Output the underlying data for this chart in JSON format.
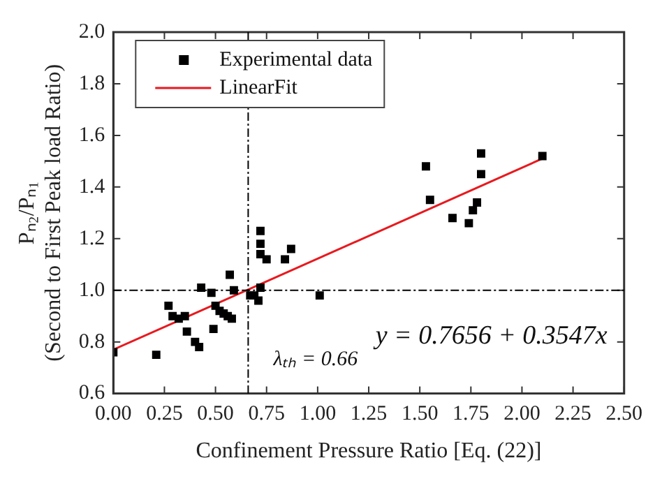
{
  "chart_data": {
    "type": "scatter",
    "xlabel": "Confinement Pressure Ratio [Eq. (22)]",
    "ylabel": "Pₙ₂/Pₙ₁\n(Second to First Peak load Ratio)",
    "series": [
      {
        "name": "Experimental data",
        "type": "scatter",
        "color": "#000000",
        "marker": "square",
        "x": [
          0,
          0.21,
          0.27,
          0.29,
          0.32,
          0.35,
          0.36,
          0.4,
          0.42,
          0.43,
          0.48,
          0.49,
          0.5,
          0.52,
          0.54,
          0.56,
          0.58,
          0.57,
          0.59,
          0.67,
          0.69,
          0.71,
          0.72,
          0.72,
          0.72,
          0.72,
          0.75,
          0.84,
          0.87,
          1.01,
          1.53,
          1.55,
          1.66,
          1.74,
          1.76,
          1.78,
          1.8,
          1.8,
          2.1
        ],
        "values": [
          0.76,
          0.75,
          0.94,
          0.9,
          0.89,
          0.9,
          0.84,
          0.8,
          0.78,
          1.01,
          0.99,
          0.85,
          0.94,
          0.92,
          0.91,
          0.9,
          0.89,
          1.06,
          1.0,
          0.98,
          0.98,
          0.96,
          1.01,
          1.23,
          1.18,
          1.14,
          1.12,
          1.12,
          1.16,
          0.98,
          1.48,
          1.35,
          1.28,
          1.26,
          1.31,
          1.34,
          1.45,
          1.53,
          1.52
        ]
      },
      {
        "name": "LinearFit",
        "type": "line",
        "color": "#e8191e",
        "marker": "none",
        "line_style": "solid",
        "x": [
          0,
          2.1
        ],
        "values": [
          0.77,
          1.51
        ]
      }
    ],
    "xlim": [
      0,
      2.5
    ],
    "ylim": [
      0.6,
      2.0
    ],
    "xticks": [
      {
        "value": 0,
        "label": "0.00"
      },
      {
        "value": 0.25,
        "label": "0.25"
      },
      {
        "value": 0.5,
        "label": "0.50"
      },
      {
        "value": 0.75,
        "label": "0.75"
      },
      {
        "value": 1,
        "label": "1.00"
      },
      {
        "value": 1.25,
        "label": "1.25"
      },
      {
        "value": 1.5,
        "label": "1.50"
      },
      {
        "value": 1.75,
        "label": "1.75"
      },
      {
        "value": 2,
        "label": "2.00"
      },
      {
        "value": 2.25,
        "label": "2.25"
      },
      {
        "value": 2.5,
        "label": "2.50"
      }
    ],
    "yticks": [
      0.6,
      0.8,
      {
        "value": 1,
        "label": "1.0"
      },
      1.2,
      1.4,
      1.6,
      1.8,
      {
        "value": 2,
        "label": "2.0"
      }
    ],
    "ref_lines": [
      {
        "axis": "x",
        "value": 0.66,
        "label": "λₜₕ = 0.66",
        "color": "#000000",
        "line_style": "dashdot"
      },
      {
        "axis": "y",
        "value": 1.0,
        "color": "#000000",
        "line_style": "dashdot"
      }
    ],
    "annotations": [
      "y = 0.7656 + 0.3547x"
    ],
    "legend": "top left",
    "grid": false
  }
}
